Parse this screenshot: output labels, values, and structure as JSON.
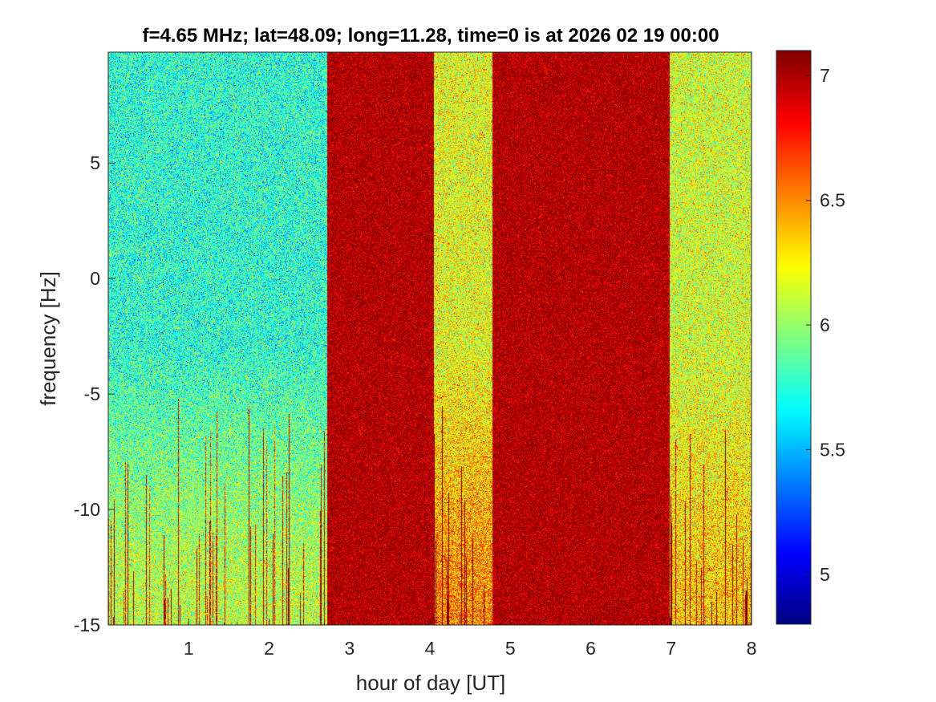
{
  "chart_data": {
    "type": "heatmap",
    "title": "f=4.65 MHz;  lat=48.09; long=11.28, time=0 is at 2026 02 19 00:00",
    "xlabel": "hour of day [UT]",
    "ylabel": "frequency [Hz]",
    "xlim": [
      0,
      8
    ],
    "ylim": [
      -15,
      9.8
    ],
    "x_ticks": [
      1,
      2,
      3,
      4,
      5,
      6,
      7,
      8
    ],
    "y_ticks": [
      -15,
      -10,
      -5,
      0,
      5
    ],
    "x_tick_labels": [
      "1",
      "2",
      "3",
      "4",
      "5",
      "6",
      "7",
      "8"
    ],
    "y_tick_labels": [
      "-15",
      "-10",
      "-5",
      "0",
      "5"
    ],
    "colorbar": {
      "colormap": "jet",
      "clim": [
        4.8,
        7.1
      ],
      "ticks": [
        5,
        5.5,
        6,
        6.5,
        7
      ],
      "tick_labels": [
        "5",
        "5.5",
        "6",
        "6.5",
        "7"
      ]
    },
    "regions": [
      {
        "x_start": 0.0,
        "x_end": 2.72,
        "baseline_value": 5.75,
        "low_freq_value": 6.1,
        "spikes": true
      },
      {
        "x_start": 2.72,
        "x_end": 4.05,
        "baseline_value": 7.0,
        "spikes": false
      },
      {
        "x_start": 4.05,
        "x_end": 4.78,
        "baseline_value": 6.2,
        "low_freq_value": 6.5,
        "spikes": true
      },
      {
        "x_start": 4.78,
        "x_end": 6.98,
        "baseline_value": 7.0,
        "spikes": false
      },
      {
        "x_start": 6.98,
        "x_end": 8.0,
        "baseline_value": 6.15,
        "low_freq_value": 6.35,
        "spikes": true
      }
    ],
    "grid": false
  }
}
